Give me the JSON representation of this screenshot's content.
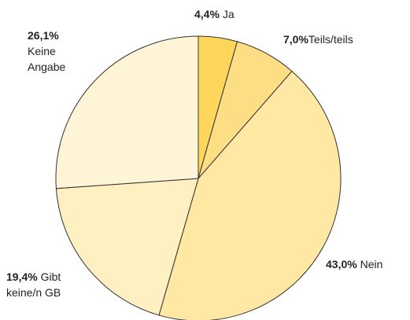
{
  "chart_data": {
    "type": "pie",
    "categories": [
      "Ja",
      "Teils/teils",
      "Nein",
      "Gibt keine/n GB",
      "Keine Angabe"
    ],
    "values": [
      4.4,
      7.0,
      43.0,
      19.4,
      26.1
    ],
    "value_labels": [
      "4,4%",
      "7,0%",
      "43,0%",
      "19,4%",
      "26,1%"
    ],
    "colors": [
      "#fed65b",
      "#fede84",
      "#fee8a3",
      "#fff0c2",
      "#fff4d6"
    ]
  }
}
